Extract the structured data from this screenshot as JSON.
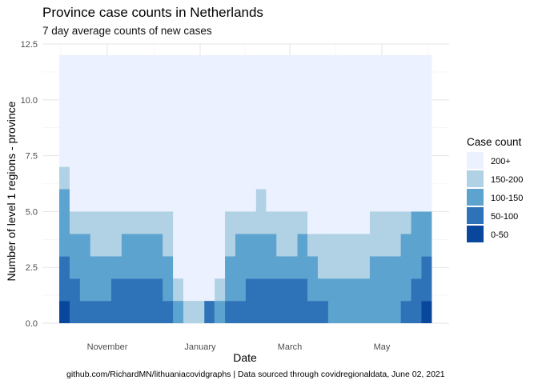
{
  "chart_data": {
    "type": "area",
    "stacked": true,
    "title": "Province case counts in Netherlands",
    "subtitle": "7 day average counts of new cases",
    "xlabel": "Date",
    "ylabel": "Number of level 1 regions - province",
    "caption": "github.com/RichardMN/lithuaniacovidgraphs | Data sourced through covidregionaldata, June 02, 2021",
    "x_ticks": [
      "November",
      "January",
      "March",
      "May"
    ],
    "y_ticks": [
      "0.0",
      "2.5",
      "5.0",
      "7.5",
      "10.0",
      "12.5"
    ],
    "ylim": [
      0,
      12.5
    ],
    "legend_title": "Case count",
    "legend_position": "right",
    "grid": true,
    "x": [
      "Oct 1",
      "Oct 8",
      "Oct 15",
      "Oct 22",
      "Oct 29",
      "Nov 5",
      "Nov 12",
      "Nov 19",
      "Nov 26",
      "Dec 3",
      "Dec 10",
      "Dec 17",
      "Dec 24",
      "Dec 31",
      "Jan 7",
      "Jan 14",
      "Jan 21",
      "Jan 28",
      "Feb 4",
      "Feb 11",
      "Feb 18",
      "Feb 25",
      "Mar 4",
      "Mar 11",
      "Mar 18",
      "Mar 25",
      "Apr 1",
      "Apr 8",
      "Apr 15",
      "Apr 22",
      "Apr 29",
      "May 6",
      "May 13",
      "May 20",
      "May 27",
      "Jun 1"
    ],
    "series": [
      {
        "name": "0-50",
        "color": "#08479b",
        "values": [
          1,
          0,
          0,
          0,
          0,
          0,
          0,
          0,
          0,
          0,
          0,
          0,
          0,
          0,
          0,
          0,
          0,
          0,
          0,
          0,
          0,
          0,
          0,
          0,
          0,
          0,
          0,
          0,
          0,
          0,
          0,
          0,
          0,
          0,
          0,
          1
        ]
      },
      {
        "name": "50-100",
        "color": "#2e73b8",
        "values": [
          2,
          2,
          1,
          1,
          1,
          2,
          2,
          2,
          2,
          2,
          1,
          0,
          0,
          0,
          1,
          0,
          1,
          1,
          2,
          2,
          2,
          2,
          2,
          2,
          1,
          1,
          0,
          0,
          0,
          0,
          0,
          0,
          0,
          1,
          2,
          2
        ]
      },
      {
        "name": "100-150",
        "color": "#5da3d0",
        "values": [
          3,
          2,
          3,
          2,
          2,
          1,
          2,
          2,
          2,
          2,
          2,
          1,
          0,
          0,
          0,
          1,
          2,
          3,
          2,
          2,
          2,
          1,
          1,
          2,
          2,
          1,
          2,
          2,
          2,
          2,
          3,
          3,
          3,
          3,
          3,
          2
        ]
      },
      {
        "name": "150-200",
        "color": "#b1d1e5",
        "values": [
          1,
          1,
          1,
          2,
          2,
          2,
          1,
          1,
          1,
          1,
          2,
          1,
          1,
          1,
          0,
          1,
          2,
          1,
          1,
          2,
          1,
          2,
          2,
          1,
          1,
          2,
          2,
          2,
          2,
          2,
          2,
          2,
          2,
          1,
          0,
          0
        ]
      },
      {
        "name": "200+",
        "color": "#ebf1fe",
        "values": [
          5,
          7,
          7,
          7,
          7,
          7,
          7,
          7,
          7,
          7,
          7,
          10,
          11,
          11,
          11,
          10,
          7,
          7,
          7,
          6,
          7,
          7,
          7,
          7,
          8,
          8,
          8,
          8,
          8,
          8,
          7,
          7,
          7,
          7,
          7,
          7
        ]
      }
    ]
  }
}
